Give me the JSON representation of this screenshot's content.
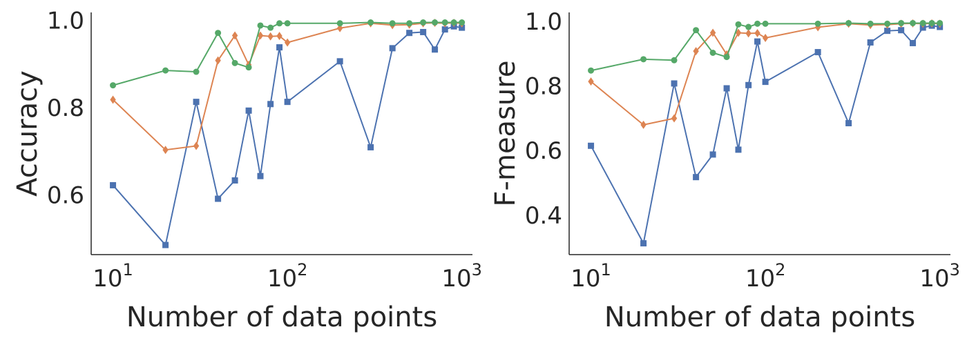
{
  "chart_data": [
    {
      "type": "line",
      "title": "",
      "xlabel": "Number of data points",
      "ylabel": "Accuracy",
      "xscale": "log",
      "xlim": [
        7.5,
        1150
      ],
      "ylim": [
        0.465,
        1.02
      ],
      "xticks": [
        10,
        100,
        1000
      ],
      "xtick_labels": [
        {
          "base": "10",
          "exp": "1"
        },
        {
          "base": "10",
          "exp": "2"
        },
        {
          "base": "10",
          "exp": "3"
        }
      ],
      "yticks": [
        0.6,
        0.8,
        1.0
      ],
      "ytick_labels": [
        "0.6",
        "0.8",
        "1.0"
      ],
      "grid": false,
      "legend": "none",
      "series": [
        {
          "color": "#4c72b0",
          "marker": "square",
          "x": [
            10,
            20,
            30,
            40,
            50,
            60,
            70,
            80,
            90,
            100,
            200,
            300,
            400,
            500,
            600,
            700,
            800,
            900,
            1000
          ],
          "y": [
            0.624,
            0.487,
            0.815,
            0.593,
            0.635,
            0.795,
            0.645,
            0.81,
            0.94,
            0.815,
            0.908,
            0.711,
            0.938,
            0.973,
            0.975,
            0.935,
            0.981,
            0.988,
            0.985
          ]
        },
        {
          "color": "#dd8452",
          "marker": "diamond",
          "x": [
            10,
            20,
            30,
            40,
            50,
            60,
            70,
            80,
            90,
            100,
            200,
            300,
            400,
            500,
            600,
            700,
            800,
            900,
            1000
          ],
          "y": [
            0.82,
            0.705,
            0.714,
            0.91,
            0.967,
            0.9,
            0.967,
            0.965,
            0.966,
            0.951,
            0.984,
            0.995,
            0.991,
            0.992,
            0.995,
            0.996,
            0.995,
            0.996,
            0.995
          ]
        },
        {
          "color": "#55a868",
          "marker": "circle",
          "x": [
            10,
            20,
            30,
            40,
            50,
            60,
            70,
            80,
            90,
            100,
            200,
            300,
            400,
            500,
            600,
            700,
            800,
            900,
            1000
          ],
          "y": [
            0.853,
            0.887,
            0.884,
            0.973,
            0.904,
            0.894,
            0.99,
            0.985,
            0.995,
            0.995,
            0.995,
            0.997,
            0.995,
            0.995,
            0.997,
            0.997,
            0.997,
            0.997,
            0.997
          ]
        }
      ]
    },
    {
      "type": "line",
      "title": "",
      "xlabel": "Number of data points",
      "ylabel": "F-measure",
      "xscale": "log",
      "xlim": [
        7.5,
        1150
      ],
      "ylim": [
        0.28,
        1.03
      ],
      "xticks": [
        10,
        100,
        1000
      ],
      "xtick_labels": [
        {
          "base": "10",
          "exp": "1"
        },
        {
          "base": "10",
          "exp": "2"
        },
        {
          "base": "10",
          "exp": "3"
        }
      ],
      "yticks": [
        0.4,
        0.6,
        0.8,
        1.0
      ],
      "ytick_labels": [
        "0.4",
        "0.6",
        "0.8",
        "1.0"
      ],
      "grid": false,
      "legend": "none",
      "series": [
        {
          "color": "#4c72b0",
          "marker": "square",
          "x": [
            10,
            20,
            30,
            40,
            50,
            60,
            70,
            80,
            90,
            100,
            200,
            300,
            400,
            500,
            600,
            700,
            800,
            900,
            1000
          ],
          "y": [
            0.617,
            0.315,
            0.81,
            0.52,
            0.59,
            0.795,
            0.605,
            0.805,
            0.94,
            0.815,
            0.907,
            0.687,
            0.937,
            0.973,
            0.975,
            0.935,
            0.983,
            0.989,
            0.985
          ]
        },
        {
          "color": "#dd8452",
          "marker": "diamond",
          "x": [
            10,
            20,
            30,
            40,
            50,
            60,
            70,
            80,
            90,
            100,
            200,
            300,
            400,
            500,
            600,
            700,
            800,
            900,
            1000
          ],
          "y": [
            0.816,
            0.682,
            0.702,
            0.91,
            0.967,
            0.9,
            0.967,
            0.965,
            0.966,
            0.951,
            0.984,
            0.995,
            0.991,
            0.992,
            0.995,
            0.996,
            0.995,
            0.996,
            0.995
          ]
        },
        {
          "color": "#55a868",
          "marker": "circle",
          "x": [
            10,
            20,
            30,
            40,
            50,
            60,
            70,
            80,
            90,
            100,
            200,
            300,
            400,
            500,
            600,
            700,
            800,
            900,
            1000
          ],
          "y": [
            0.85,
            0.885,
            0.882,
            0.975,
            0.905,
            0.892,
            0.993,
            0.985,
            0.995,
            0.995,
            0.995,
            0.997,
            0.995,
            0.995,
            0.997,
            0.997,
            0.997,
            0.997,
            0.997
          ]
        }
      ]
    }
  ]
}
